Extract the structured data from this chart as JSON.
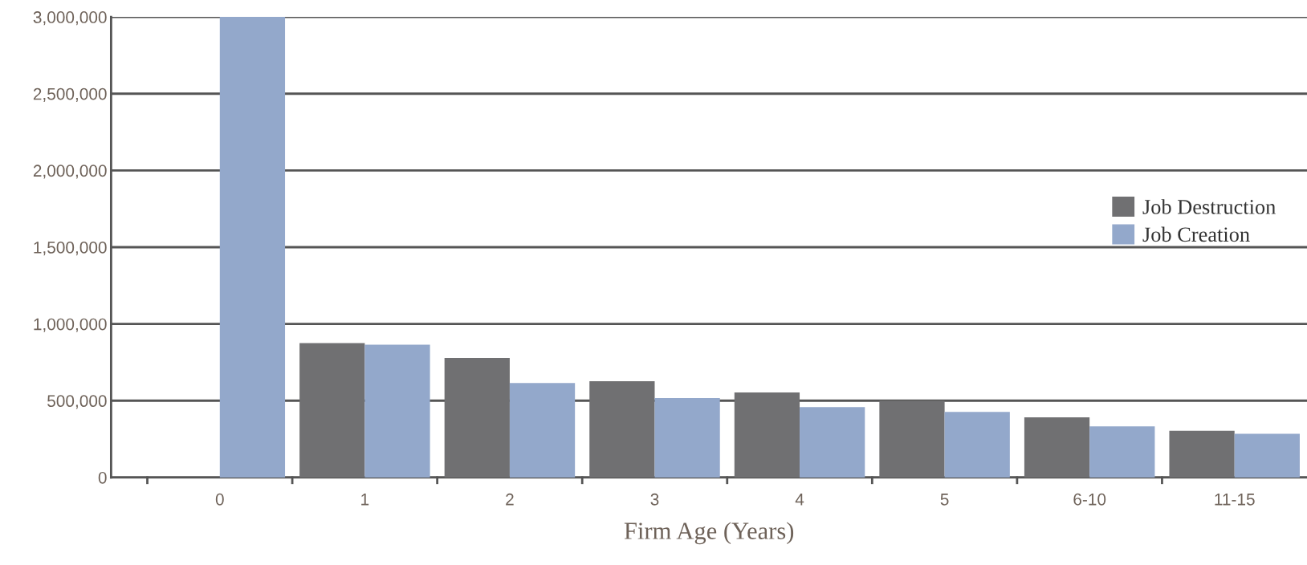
{
  "chart_data": {
    "type": "bar",
    "xlabel": "Firm Age (Years)",
    "categories": [
      "0",
      "1",
      "2",
      "3",
      "4",
      "5",
      "6-10",
      "11-15"
    ],
    "series": [
      {
        "name": "Job Destruction",
        "color": "#707072",
        "values": [
          null,
          875000,
          778000,
          627000,
          553000,
          500000,
          391000,
          304000
        ]
      },
      {
        "name": "Job Creation",
        "color": "#93a8cb",
        "values": [
          3000000,
          865000,
          615000,
          517000,
          458000,
          427000,
          333000,
          284000
        ]
      }
    ],
    "ylim": [
      0,
      3000000
    ],
    "yticks": [
      0,
      {
        "value": 500000,
        "label": "500,000"
      },
      {
        "value": 1000000,
        "label": "1,000,000"
      },
      {
        "value": 1500000,
        "label": "1,500,000"
      },
      {
        "value": 2000000,
        "label": "2,000,000"
      },
      {
        "value": 2500000,
        "label": "2,500,000"
      },
      {
        "value": 3000000,
        "label": "3,000,000"
      }
    ],
    "grid": "y",
    "legend": "top right"
  }
}
